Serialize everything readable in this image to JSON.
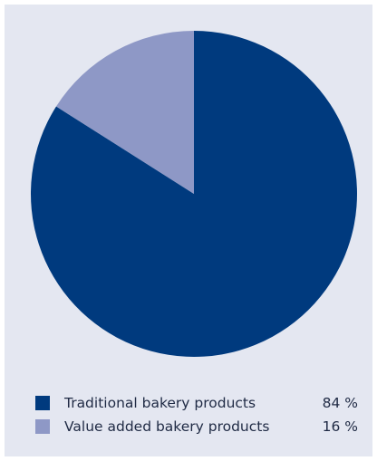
{
  "chart_data": {
    "type": "pie",
    "title": "",
    "start_angle": "12 o'clock, clockwise",
    "slices": [
      {
        "label": "Traditional bakery products",
        "value": 84,
        "display": "84 %",
        "color": "#003a7e"
      },
      {
        "label": "Value added bakery products",
        "value": 16,
        "display": "16 %",
        "color": "#8e98c6"
      }
    ],
    "legend_position": "bottom",
    "background_color": "#e4e7f1"
  }
}
